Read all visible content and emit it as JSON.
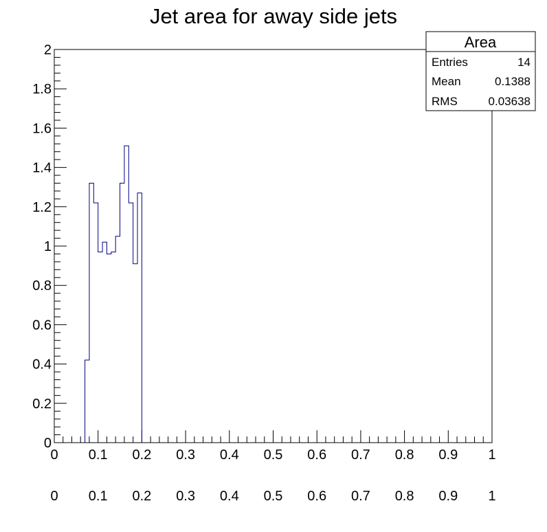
{
  "chart_data": {
    "type": "histogram",
    "title": "Jet area for away side jets",
    "xlabel": "",
    "ylabel": "",
    "xlim": [
      0,
      1
    ],
    "ylim": [
      0,
      2
    ],
    "x_ticks": [
      "0",
      "0.1",
      "0.2",
      "0.3",
      "0.4",
      "0.5",
      "0.6",
      "0.7",
      "0.8",
      "0.9",
      "1"
    ],
    "y_ticks": [
      "0",
      "0.2",
      "0.4",
      "0.6",
      "0.8",
      "1",
      "1.2",
      "1.4",
      "1.6",
      "1.8",
      "2"
    ],
    "line_color": "#00007f",
    "bin_width": 0.01,
    "bins": [
      {
        "x": 0.07,
        "value": 0.42
      },
      {
        "x": 0.08,
        "value": 1.32
      },
      {
        "x": 0.09,
        "value": 1.22
      },
      {
        "x": 0.1,
        "value": 0.97
      },
      {
        "x": 0.11,
        "value": 1.02
      },
      {
        "x": 0.12,
        "value": 0.96
      },
      {
        "x": 0.13,
        "value": 0.97
      },
      {
        "x": 0.14,
        "value": 1.05
      },
      {
        "x": 0.15,
        "value": 1.32
      },
      {
        "x": 0.16,
        "value": 1.51
      },
      {
        "x": 0.17,
        "value": 1.22
      },
      {
        "x": 0.18,
        "value": 0.91
      },
      {
        "x": 0.19,
        "value": 1.27
      }
    ],
    "stats": {
      "name": "Area",
      "entries_label": "Entries",
      "entries": "14",
      "mean_label": "Mean",
      "mean": "0.1388",
      "rms_label": "RMS",
      "rms": "0.03638"
    },
    "legend_placement": "top-right",
    "grid": false
  }
}
